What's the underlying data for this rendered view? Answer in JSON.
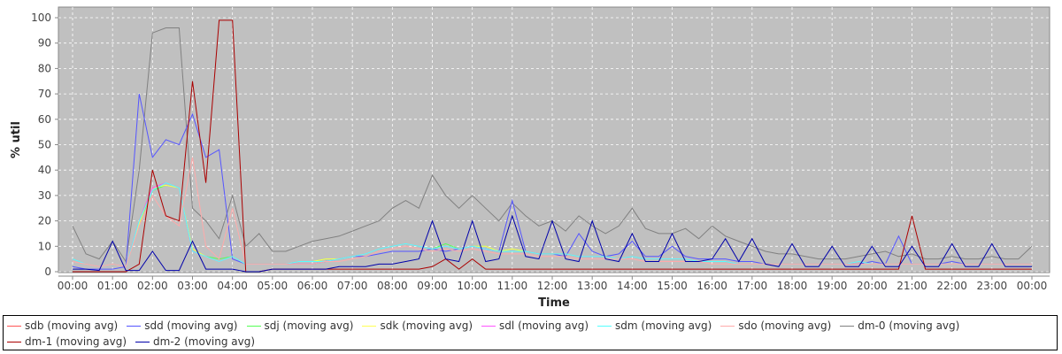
{
  "chart_data": {
    "type": "line",
    "title": "",
    "xlabel": "Time",
    "ylabel": "% util",
    "ylim": [
      0,
      100
    ],
    "yticks": [
      "0",
      "10",
      "20",
      "30",
      "40",
      "50",
      "60",
      "70",
      "80",
      "90",
      "100"
    ],
    "xticks": [
      "00:00",
      "01:00",
      "02:00",
      "03:00",
      "04:00",
      "05:00",
      "06:00",
      "07:00",
      "08:00",
      "09:00",
      "10:00",
      "11:00",
      "12:00",
      "13:00",
      "14:00",
      "15:00",
      "16:00",
      "17:00",
      "18:00",
      "19:00",
      "20:00",
      "21:00",
      "22:00",
      "23:00",
      "00:00"
    ],
    "x_step_minutes": 20,
    "grid": true,
    "legend_position": "bottom",
    "series": [
      {
        "name": "sdb (moving avg)",
        "color": "#ff5555",
        "values": [
          5,
          3,
          2,
          3,
          2,
          20,
          33,
          35,
          33,
          8,
          6,
          4,
          6,
          3,
          3,
          3,
          3,
          4,
          4,
          4,
          5,
          6,
          7,
          9,
          10,
          11,
          10,
          9,
          10,
          9,
          10,
          9,
          8,
          8,
          8,
          7,
          7,
          7,
          6,
          6,
          6,
          5,
          6,
          5,
          5,
          5,
          5,
          4,
          4,
          4,
          3,
          3,
          3,
          3,
          3,
          3,
          3,
          3,
          3,
          4,
          3,
          3,
          3,
          3,
          3,
          3,
          3,
          3,
          3,
          3,
          3,
          3,
          3
        ]
      },
      {
        "name": "sdd (moving avg)",
        "color": "#5555ff",
        "values": [
          2,
          1,
          1,
          1,
          2,
          70,
          45,
          52,
          50,
          62,
          45,
          48,
          5,
          3,
          3,
          3,
          3,
          3,
          3,
          4,
          5,
          6,
          6,
          7,
          8,
          8,
          8,
          9,
          8,
          9,
          10,
          9,
          8,
          28,
          8,
          7,
          7,
          6,
          15,
          8,
          6,
          7,
          12,
          6,
          6,
          10,
          6,
          5,
          5,
          5,
          4,
          4,
          3,
          3,
          3,
          3,
          3,
          3,
          3,
          3,
          4,
          3,
          14,
          3,
          3,
          3,
          4,
          3,
          3,
          3,
          3,
          3,
          3
        ]
      },
      {
        "name": "sdj (moving avg)",
        "color": "#55ff55",
        "values": [
          5,
          3,
          2,
          3,
          2,
          19,
          32,
          34,
          33,
          9,
          6,
          5,
          6,
          3,
          3,
          3,
          3,
          4,
          4,
          5,
          5,
          6,
          7,
          9,
          10,
          11,
          10,
          9,
          11,
          9,
          10,
          10,
          8,
          9,
          8,
          7,
          7,
          7,
          6,
          6,
          6,
          5,
          6,
          5,
          5,
          5,
          5,
          4,
          4,
          4,
          3,
          3,
          3,
          3,
          3,
          3,
          3,
          3,
          3,
          4,
          3,
          3,
          3,
          3,
          3,
          3,
          3,
          3,
          3,
          3,
          3,
          3,
          3
        ]
      },
      {
        "name": "sdk (moving avg)",
        "color": "#ffff55",
        "values": [
          5,
          3,
          2,
          3,
          2,
          19,
          33,
          34,
          33,
          9,
          6,
          4,
          6,
          3,
          3,
          3,
          3,
          4,
          4,
          5,
          5,
          6,
          7,
          9,
          10,
          11,
          10,
          9,
          10,
          9,
          10,
          10,
          8,
          9,
          8,
          7,
          7,
          7,
          6,
          6,
          6,
          5,
          6,
          5,
          5,
          5,
          5,
          4,
          4,
          4,
          3,
          3,
          3,
          3,
          3,
          3,
          3,
          3,
          3,
          4,
          3,
          3,
          3,
          3,
          3,
          3,
          3,
          3,
          3,
          3,
          3,
          3,
          3
        ]
      },
      {
        "name": "sdl (moving avg)",
        "color": "#ff55ff",
        "values": [
          5,
          3,
          2,
          3,
          2,
          20,
          33,
          35,
          33,
          8,
          6,
          4,
          6,
          3,
          3,
          3,
          3,
          4,
          4,
          4,
          5,
          6,
          7,
          9,
          10,
          11,
          10,
          9,
          10,
          9,
          10,
          9,
          8,
          8,
          8,
          7,
          7,
          7,
          6,
          6,
          6,
          5,
          6,
          5,
          5,
          5,
          5,
          4,
          4,
          4,
          3,
          3,
          3,
          3,
          3,
          3,
          3,
          3,
          3,
          4,
          3,
          3,
          3,
          3,
          3,
          3,
          3,
          3,
          3,
          3,
          3,
          3,
          3
        ]
      },
      {
        "name": "sdm (moving avg)",
        "color": "#55ffff",
        "values": [
          5,
          3,
          2,
          3,
          2,
          20,
          32,
          35,
          33,
          8,
          6,
          4,
          6,
          3,
          3,
          3,
          3,
          4,
          4,
          4,
          5,
          6,
          7,
          9,
          10,
          11,
          10,
          9,
          10,
          9,
          10,
          9,
          8,
          8,
          8,
          7,
          7,
          7,
          6,
          6,
          6,
          5,
          6,
          5,
          5,
          5,
          5,
          4,
          4,
          4,
          3,
          3,
          3,
          3,
          3,
          3,
          3,
          3,
          3,
          4,
          3,
          3,
          3,
          3,
          3,
          3,
          3,
          3,
          3,
          3,
          3,
          3,
          3
        ]
      },
      {
        "name": "sdo (moving avg)",
        "color": "#ffaaaa",
        "values": [
          4,
          3,
          2,
          3,
          2,
          18,
          30,
          22,
          18,
          45,
          10,
          5,
          25,
          3,
          3,
          3,
          3,
          3,
          3,
          4,
          4,
          5,
          6,
          8,
          9,
          10,
          9,
          8,
          9,
          8,
          9,
          8,
          7,
          7,
          7,
          6,
          6,
          6,
          5,
          5,
          5,
          5,
          5,
          4,
          4,
          4,
          4,
          4,
          3,
          3,
          3,
          3,
          3,
          3,
          3,
          3,
          3,
          3,
          3,
          3,
          3,
          3,
          3,
          3,
          3,
          3,
          3,
          3,
          3,
          3,
          3,
          3,
          3
        ]
      },
      {
        "name": "dm-0 (moving avg)",
        "color": "#808080",
        "values": [
          18,
          7,
          5,
          12,
          4,
          40,
          94,
          96,
          96,
          25,
          20,
          13,
          30,
          10,
          15,
          8,
          8,
          10,
          12,
          13,
          14,
          16,
          18,
          20,
          25,
          28,
          25,
          38,
          30,
          25,
          30,
          25,
          20,
          27,
          22,
          18,
          20,
          16,
          22,
          18,
          15,
          18,
          25,
          17,
          15,
          15,
          17,
          13,
          18,
          14,
          12,
          10,
          8,
          7,
          7,
          6,
          5,
          5,
          5,
          6,
          7,
          8,
          6,
          7,
          5,
          5,
          6,
          5,
          5,
          6,
          5,
          5,
          10
        ]
      },
      {
        "name": "dm-1 (moving avg)",
        "color": "#aa0000",
        "values": [
          0,
          0,
          0,
          0,
          0,
          3,
          40,
          22,
          20,
          75,
          35,
          99,
          99,
          0,
          0,
          1,
          1,
          1,
          1,
          1,
          1,
          1,
          1,
          1,
          1,
          1,
          1,
          2,
          5,
          1,
          5,
          1,
          1,
          1,
          1,
          1,
          1,
          1,
          1,
          1,
          1,
          1,
          1,
          1,
          1,
          1,
          1,
          1,
          1,
          1,
          1,
          1,
          1,
          1,
          1,
          1,
          1,
          1,
          1,
          1,
          1,
          1,
          1,
          22,
          1,
          1,
          1,
          1,
          1,
          1,
          1,
          1,
          1
        ]
      },
      {
        "name": "dm-2 (moving avg)",
        "color": "#0000aa",
        "values": [
          1,
          1,
          0.5,
          12,
          0.5,
          0.5,
          8,
          0.5,
          0.5,
          12,
          1,
          1,
          1,
          0,
          0,
          1,
          1,
          1,
          1,
          1,
          2,
          2,
          2,
          3,
          3,
          4,
          5,
          20,
          5,
          4,
          20,
          4,
          5,
          22,
          6,
          5,
          20,
          5,
          4,
          20,
          5,
          4,
          15,
          4,
          4,
          15,
          4,
          4,
          5,
          13,
          4,
          13,
          3,
          2,
          11,
          2,
          2,
          10,
          2,
          2,
          10,
          2,
          2,
          10,
          2,
          2,
          11,
          2,
          2,
          11,
          2,
          2,
          2
        ]
      }
    ]
  }
}
